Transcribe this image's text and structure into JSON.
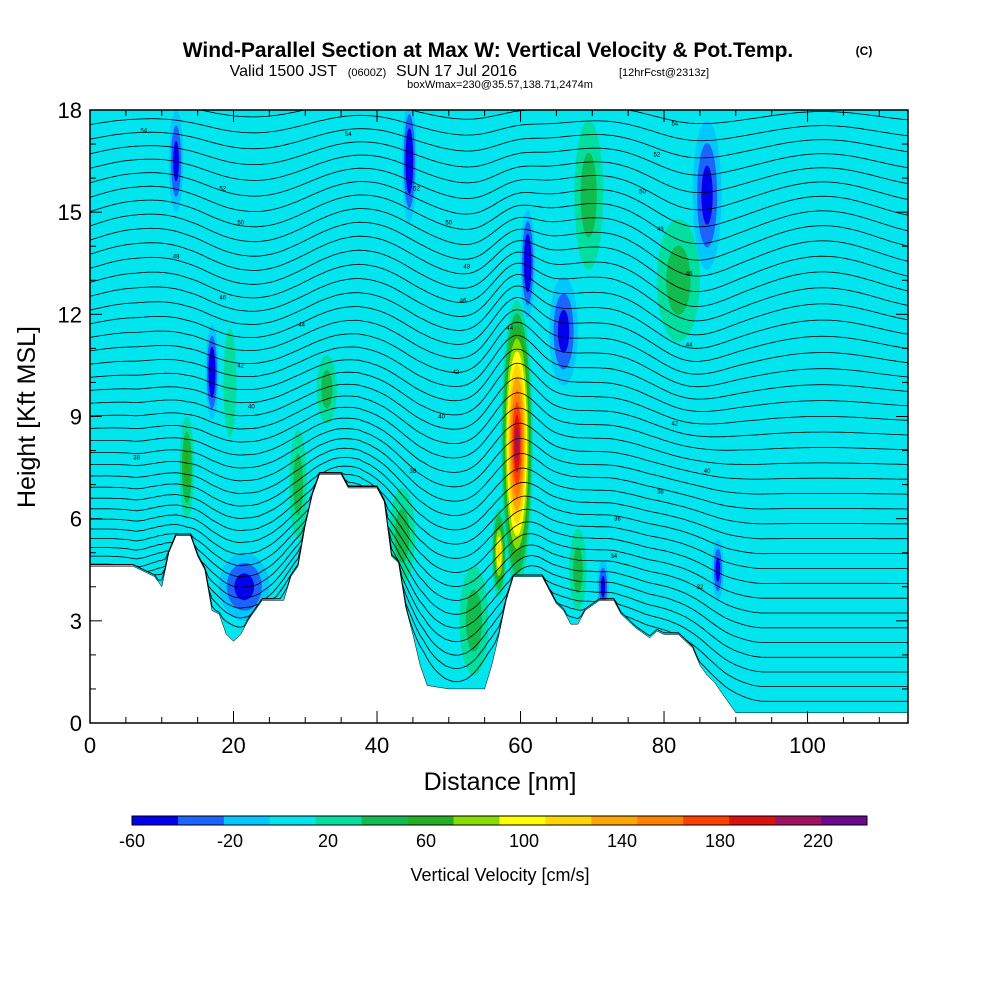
{
  "title": {
    "main": "Wind-Parallel Section at Max W: Vertical Velocity & Pot.Temp.",
    "copyright": "(C)",
    "valid_prefix": "Valid 1500 JST",
    "valid_utc": "(0600Z)",
    "valid_date": "SUN 17 Jul 2016",
    "forecast": "[12hrFcst@2313z]",
    "box": "boxWmax=230@35.57,138.71,2474m"
  },
  "colors": {
    "background": "#00e5ee",
    "terrain": "#ffffff",
    "contour": "#000000"
  },
  "chart_data": {
    "type": "heatmap",
    "xlabel": "Distance [nm]",
    "ylabel": "Height [Kft MSL]",
    "xlim": [
      0,
      114
    ],
    "ylim": [
      0,
      18
    ],
    "xticks": [
      0,
      20,
      40,
      60,
      80,
      100
    ],
    "yticks": [
      0,
      3,
      6,
      9,
      12,
      15,
      18
    ],
    "grid": false,
    "terrain_kft": [
      [
        0,
        4.6
      ],
      [
        6,
        4.6
      ],
      [
        9,
        4.3
      ],
      [
        10,
        4.0
      ],
      [
        11,
        5.0
      ],
      [
        12,
        5.5
      ],
      [
        14,
        5.5
      ],
      [
        15,
        4.9
      ],
      [
        16,
        4.5
      ],
      [
        17,
        3.3
      ],
      [
        18,
        3.2
      ],
      [
        19,
        2.6
      ],
      [
        20,
        2.4
      ],
      [
        21,
        2.6
      ],
      [
        22,
        3.0
      ],
      [
        24,
        3.6
      ],
      [
        27,
        3.6
      ],
      [
        28,
        4.3
      ],
      [
        29,
        4.6
      ],
      [
        30,
        5.8
      ],
      [
        31,
        6.7
      ],
      [
        32,
        7.3
      ],
      [
        35,
        7.3
      ],
      [
        36,
        6.9
      ],
      [
        40,
        6.9
      ],
      [
        41,
        6.5
      ],
      [
        42,
        4.9
      ],
      [
        43,
        4.7
      ],
      [
        44,
        3.4
      ],
      [
        45,
        2.6
      ],
      [
        46,
        1.7
      ],
      [
        47,
        1.1
      ],
      [
        50,
        1.0
      ],
      [
        55,
        1.0
      ],
      [
        56,
        1.7
      ],
      [
        57,
        2.6
      ],
      [
        58,
        3.6
      ],
      [
        59,
        4.3
      ],
      [
        63,
        4.3
      ],
      [
        64,
        3.9
      ],
      [
        65,
        3.5
      ],
      [
        66,
        3.3
      ],
      [
        67,
        2.9
      ],
      [
        68,
        2.9
      ],
      [
        69,
        3.3
      ],
      [
        71,
        3.6
      ],
      [
        73,
        3.6
      ],
      [
        74,
        3.2
      ],
      [
        75,
        3.0
      ],
      [
        76,
        2.8
      ],
      [
        78,
        2.5
      ],
      [
        79,
        2.7
      ],
      [
        80,
        2.6
      ],
      [
        82,
        2.6
      ],
      [
        84,
        2.2
      ],
      [
        85,
        1.7
      ],
      [
        86,
        1.4
      ],
      [
        87,
        1.2
      ],
      [
        88,
        0.9
      ],
      [
        89,
        0.6
      ],
      [
        90,
        0.3
      ],
      [
        114,
        0.3
      ]
    ],
    "colorbar": {
      "label": "Vertical Velocity [cm/s]",
      "tick_labels": [
        "-60",
        "-20",
        "20",
        "60",
        "100",
        "140",
        "180",
        "220"
      ],
      "tick_values": [
        -60,
        -20,
        20,
        60,
        100,
        140,
        180,
        220
      ],
      "levels": [
        -60,
        -40,
        -20,
        0,
        20,
        40,
        60,
        80,
        100,
        120,
        140,
        160,
        180,
        200,
        220,
        240
      ],
      "colors": [
        "#0000ee",
        "#1c64ff",
        "#00c8ff",
        "#00e5ee",
        "#00dfa0",
        "#11bb4e",
        "#22b022",
        "#88dd00",
        "#ffff00",
        "#ffd700",
        "#ffa500",
        "#ff7f00",
        "#ff3f00",
        "#dd1010",
        "#a01060",
        "#6a0a8a"
      ]
    },
    "updrafts": [
      {
        "x": 59.5,
        "y": 8.2,
        "rx": 2.2,
        "ry": 4.2,
        "peak_cm_s": 230
      },
      {
        "x": 57.0,
        "y": 5.0,
        "rx": 1.0,
        "ry": 1.3,
        "peak_cm_s": 120
      },
      {
        "x": 13.5,
        "y": 7.5,
        "rx": 1.0,
        "ry": 1.5,
        "peak_cm_s": 60
      },
      {
        "x": 29.0,
        "y": 7.0,
        "rx": 1.2,
        "ry": 1.6,
        "peak_cm_s": 50
      },
      {
        "x": 33.0,
        "y": 9.8,
        "rx": 1.4,
        "ry": 1.0,
        "peak_cm_s": 40
      },
      {
        "x": 43.5,
        "y": 5.5,
        "rx": 1.8,
        "ry": 1.4,
        "peak_cm_s": 40
      },
      {
        "x": 53.5,
        "y": 3.0,
        "rx": 2.0,
        "ry": 1.6,
        "peak_cm_s": 40
      },
      {
        "x": 68.0,
        "y": 4.5,
        "rx": 1.2,
        "ry": 1.2,
        "peak_cm_s": 50
      },
      {
        "x": 82.0,
        "y": 13.0,
        "rx": 3.0,
        "ry": 1.8,
        "peak_cm_s": 40
      },
      {
        "x": 69.5,
        "y": 15.5,
        "rx": 2.0,
        "ry": 2.2,
        "peak_cm_s": 40
      },
      {
        "x": 19.5,
        "y": 10.0,
        "rx": 0.9,
        "ry": 1.6,
        "peak_cm_s": 30
      }
    ],
    "downdrafts": [
      {
        "x": 17.0,
        "y": 10.3,
        "rx": 0.9,
        "ry": 1.4,
        "peak_cm_s": -60
      },
      {
        "x": 44.5,
        "y": 16.5,
        "rx": 1.0,
        "ry": 1.8,
        "peak_cm_s": -60
      },
      {
        "x": 61.0,
        "y": 13.5,
        "rx": 1.0,
        "ry": 1.6,
        "peak_cm_s": -60
      },
      {
        "x": 21.5,
        "y": 4.0,
        "rx": 3.5,
        "ry": 1.0,
        "peak_cm_s": -40
      },
      {
        "x": 86.0,
        "y": 15.5,
        "rx": 2.0,
        "ry": 2.2,
        "peak_cm_s": -40
      },
      {
        "x": 12.0,
        "y": 16.5,
        "rx": 1.0,
        "ry": 1.5,
        "peak_cm_s": -40
      },
      {
        "x": 66.0,
        "y": 11.5,
        "rx": 2.0,
        "ry": 1.6,
        "peak_cm_s": -40
      },
      {
        "x": 71.5,
        "y": 4.0,
        "rx": 0.8,
        "ry": 0.8,
        "peak_cm_s": -40
      },
      {
        "x": 87.5,
        "y": 4.5,
        "rx": 0.8,
        "ry": 0.9,
        "peak_cm_s": -40
      }
    ],
    "theta_contours": {
      "count": 40,
      "ymin_kft": 0.4,
      "ymax_kft": 17.8,
      "labels": [
        {
          "x": 7.5,
          "y": 17.4,
          "text": "54"
        },
        {
          "x": 36.0,
          "y": 17.3,
          "text": "54"
        },
        {
          "x": 81.5,
          "y": 17.6,
          "text": "54"
        },
        {
          "x": 79.0,
          "y": 16.7,
          "text": "52"
        },
        {
          "x": 18.5,
          "y": 15.7,
          "text": "52"
        },
        {
          "x": 45.5,
          "y": 15.7,
          "text": "52"
        },
        {
          "x": 77.0,
          "y": 15.6,
          "text": "50"
        },
        {
          "x": 21.0,
          "y": 14.7,
          "text": "50"
        },
        {
          "x": 50.0,
          "y": 14.7,
          "text": "50"
        },
        {
          "x": 79.5,
          "y": 14.5,
          "text": "48"
        },
        {
          "x": 12.0,
          "y": 13.7,
          "text": "48"
        },
        {
          "x": 52.5,
          "y": 13.4,
          "text": "48"
        },
        {
          "x": 83.5,
          "y": 13.2,
          "text": "46"
        },
        {
          "x": 18.5,
          "y": 12.5,
          "text": "46"
        },
        {
          "x": 52.0,
          "y": 12.4,
          "text": "46"
        },
        {
          "x": 29.5,
          "y": 11.7,
          "text": "44"
        },
        {
          "x": 58.5,
          "y": 11.6,
          "text": "44"
        },
        {
          "x": 83.5,
          "y": 11.1,
          "text": "44"
        },
        {
          "x": 21.0,
          "y": 10.5,
          "text": "42"
        },
        {
          "x": 51.0,
          "y": 10.3,
          "text": "42"
        },
        {
          "x": 22.5,
          "y": 9.3,
          "text": "40"
        },
        {
          "x": 49.0,
          "y": 9.0,
          "text": "40"
        },
        {
          "x": 81.5,
          "y": 8.8,
          "text": "42"
        },
        {
          "x": 6.5,
          "y": 7.8,
          "text": "38"
        },
        {
          "x": 45.0,
          "y": 7.4,
          "text": "38"
        },
        {
          "x": 86.0,
          "y": 7.4,
          "text": "40"
        },
        {
          "x": 79.5,
          "y": 6.8,
          "text": "38"
        },
        {
          "x": 73.5,
          "y": 6.0,
          "text": "36"
        },
        {
          "x": 73.0,
          "y": 4.9,
          "text": "34"
        },
        {
          "x": 85.0,
          "y": 4.0,
          "text": "32"
        }
      ]
    }
  }
}
